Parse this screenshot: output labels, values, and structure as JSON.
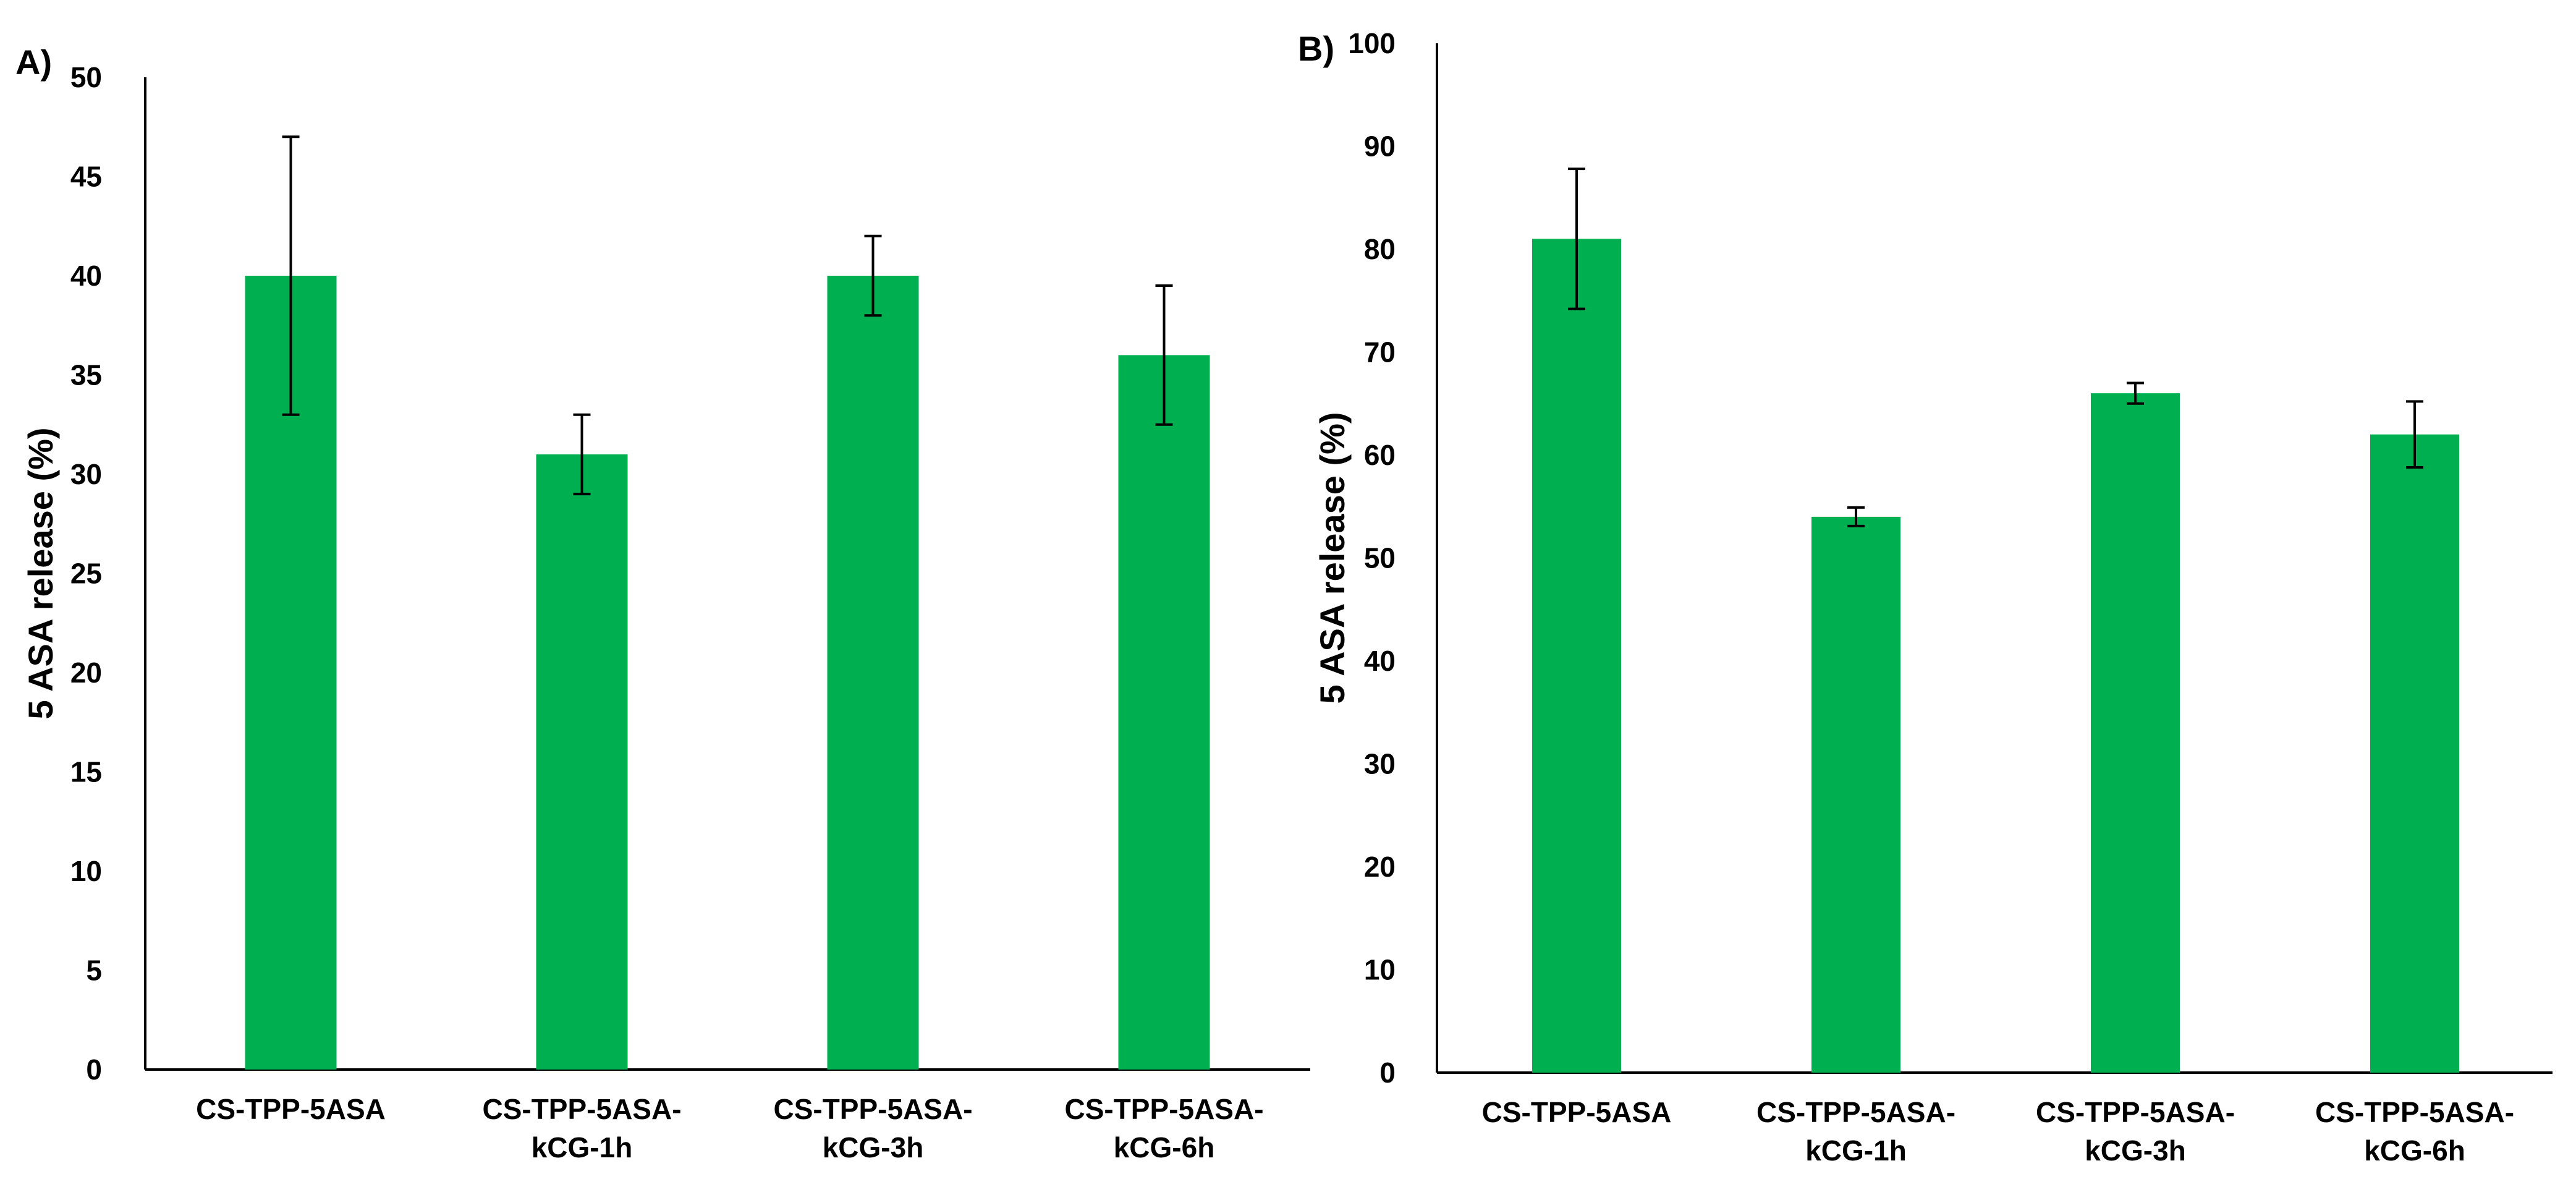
{
  "chart_data": [
    {
      "panel_label": "A)",
      "type": "bar",
      "ylabel": "5 ASA release (%)",
      "xlabel": "",
      "ylim": [
        0,
        50
      ],
      "yticks": [
        "0",
        "5",
        "10",
        "15",
        "20",
        "25",
        "30",
        "35",
        "40",
        "45",
        "50"
      ],
      "categories": [
        [
          "CS-TPP-5ASA"
        ],
        [
          "CS-TPP-5ASA-",
          "kCG-1h"
        ],
        [
          "CS-TPP-5ASA-",
          "kCG-3h"
        ],
        [
          "CS-TPP-5ASA-",
          "kCG-6h"
        ]
      ],
      "values": [
        40,
        31,
        40,
        36
      ],
      "errors": [
        7,
        2,
        2,
        3.5
      ],
      "bar_color": "#00b050",
      "grid": false,
      "legend": "none"
    },
    {
      "panel_label": "B)",
      "type": "bar",
      "ylabel": "5 ASA release (%)",
      "xlabel": "",
      "ylim": [
        0,
        100
      ],
      "yticks": [
        "0",
        "10",
        "20",
        "30",
        "40",
        "50",
        "60",
        "70",
        "80",
        "90",
        "100"
      ],
      "categories": [
        [
          "CS-TPP-5ASA"
        ],
        [
          "CS-TPP-5ASA-",
          "kCG-1h"
        ],
        [
          "CS-TPP-5ASA-",
          "kCG-3h"
        ],
        [
          "CS-TPP-5ASA-",
          "kCG-6h"
        ]
      ],
      "values": [
        81,
        54,
        66,
        62
      ],
      "errors": [
        6.8,
        0.9,
        1.0,
        3.2
      ],
      "bar_color": "#00b050",
      "grid": false,
      "legend": "none"
    }
  ]
}
